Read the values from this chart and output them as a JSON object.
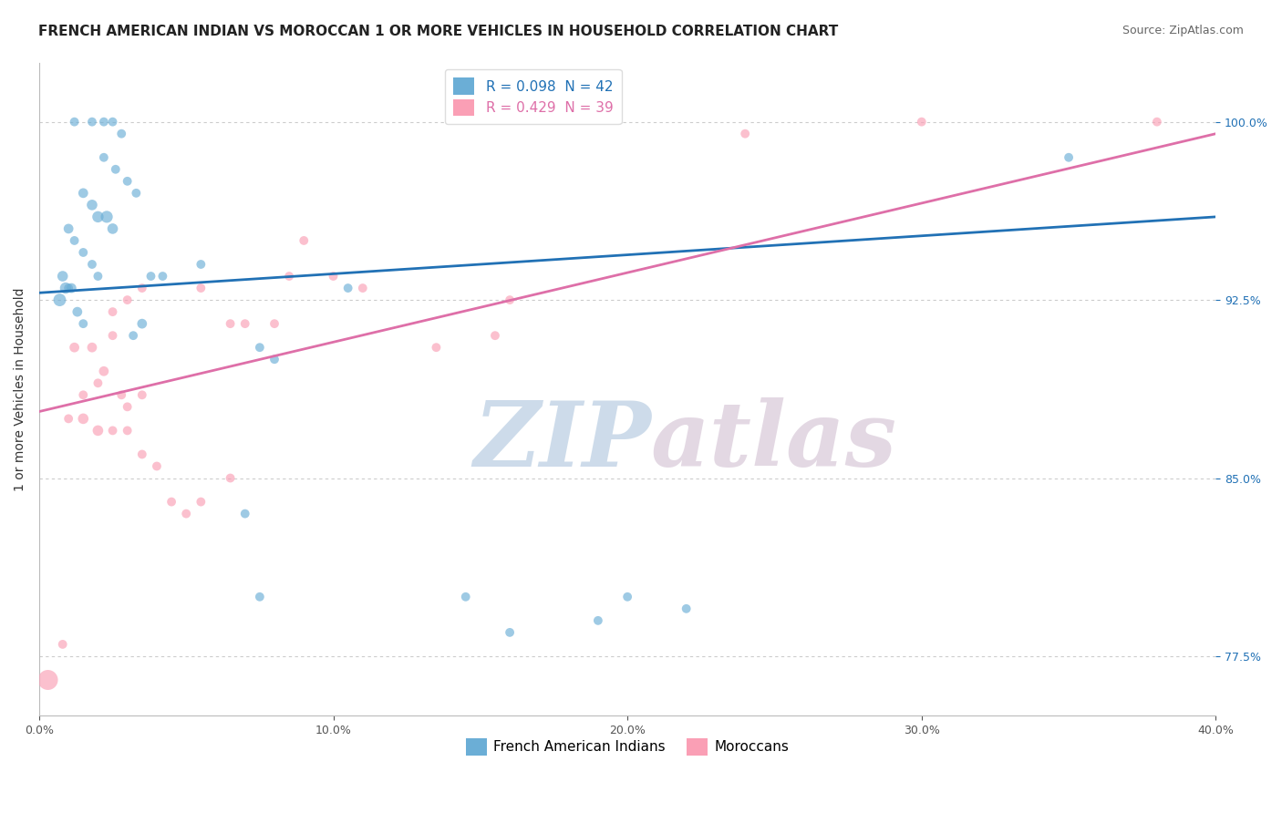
{
  "title": "FRENCH AMERICAN INDIAN VS MOROCCAN 1 OR MORE VEHICLES IN HOUSEHOLD CORRELATION CHART",
  "source": "Source: ZipAtlas.com",
  "xlabel": "",
  "ylabel": "1 or more Vehicles in Household",
  "xlim": [
    0.0,
    40.0
  ],
  "ylim": [
    75.0,
    102.5
  ],
  "yticks": [
    77.5,
    85.0,
    92.5,
    100.0
  ],
  "ytick_labels": [
    "77.5%",
    "85.0%",
    "92.5%",
    "100.0%"
  ],
  "xticks": [
    0.0,
    10.0,
    20.0,
    30.0,
    40.0
  ],
  "xtick_labels": [
    "0.0%",
    "10.0%",
    "20.0%",
    "30.0%",
    "40.0%"
  ],
  "blue_R": 0.098,
  "blue_N": 42,
  "pink_R": 0.429,
  "pink_N": 39,
  "blue_color": "#6baed6",
  "pink_color": "#fa9fb5",
  "blue_line_color": "#2171b5",
  "pink_line_color": "#de6fa8",
  "legend_label_blue": "French American Indians",
  "legend_label_pink": "Moroccans",
  "blue_line": [
    0.0,
    92.8,
    40.0,
    96.0
  ],
  "pink_line": [
    0.0,
    87.8,
    40.0,
    99.5
  ],
  "blue_x": [
    1.2,
    1.8,
    2.2,
    2.5,
    2.8,
    2.2,
    2.6,
    3.0,
    3.3,
    1.5,
    1.8,
    2.0,
    2.3,
    2.5,
    1.0,
    1.2,
    1.5,
    1.8,
    2.0,
    1.0,
    0.8,
    0.9,
    1.1,
    0.7,
    1.3,
    1.5,
    3.8,
    4.2,
    5.5,
    3.5,
    3.2,
    7.5,
    8.0,
    10.5,
    7.0,
    14.5,
    16.0,
    19.0,
    22.0,
    7.5,
    20.0,
    35.0
  ],
  "blue_y": [
    100.0,
    100.0,
    100.0,
    100.0,
    99.5,
    98.5,
    98.0,
    97.5,
    97.0,
    97.0,
    96.5,
    96.0,
    96.0,
    95.5,
    95.5,
    95.0,
    94.5,
    94.0,
    93.5,
    93.0,
    93.5,
    93.0,
    93.0,
    92.5,
    92.0,
    91.5,
    93.5,
    93.5,
    94.0,
    91.5,
    91.0,
    90.5,
    90.0,
    93.0,
    83.5,
    80.0,
    78.5,
    79.0,
    79.5,
    80.0,
    80.0,
    98.5
  ],
  "blue_sizes": [
    50,
    50,
    50,
    50,
    50,
    50,
    50,
    50,
    50,
    60,
    70,
    80,
    90,
    70,
    60,
    50,
    50,
    50,
    50,
    50,
    70,
    80,
    60,
    100,
    60,
    50,
    50,
    50,
    50,
    60,
    50,
    50,
    50,
    50,
    50,
    50,
    50,
    50,
    50,
    50,
    50,
    50
  ],
  "pink_x": [
    0.3,
    0.8,
    1.0,
    1.5,
    2.0,
    2.5,
    1.2,
    1.8,
    2.2,
    2.8,
    3.0,
    3.5,
    1.5,
    2.0,
    2.5,
    3.0,
    3.5,
    4.0,
    4.5,
    5.0,
    5.5,
    6.5,
    6.5,
    2.5,
    3.0,
    3.5,
    5.5,
    7.0,
    8.0,
    8.5,
    9.0,
    10.0,
    11.0,
    13.5,
    15.5,
    16.0,
    24.0,
    30.0,
    38.0
  ],
  "pink_y": [
    76.5,
    78.0,
    87.5,
    88.5,
    89.0,
    91.0,
    90.5,
    90.5,
    89.5,
    88.5,
    88.0,
    88.5,
    87.5,
    87.0,
    87.0,
    87.0,
    86.0,
    85.5,
    84.0,
    83.5,
    84.0,
    85.0,
    91.5,
    92.0,
    92.5,
    93.0,
    93.0,
    91.5,
    91.5,
    93.5,
    95.0,
    93.5,
    93.0,
    90.5,
    91.0,
    92.5,
    99.5,
    100.0,
    100.0
  ],
  "pink_sizes": [
    250,
    50,
    50,
    50,
    50,
    50,
    60,
    60,
    60,
    50,
    50,
    50,
    70,
    70,
    50,
    50,
    50,
    50,
    50,
    50,
    50,
    50,
    50,
    50,
    50,
    50,
    50,
    50,
    50,
    50,
    50,
    50,
    50,
    50,
    50,
    50,
    50,
    50,
    50
  ],
  "watermark_zip": "ZIP",
  "watermark_atlas": "atlas",
  "background_color": "#ffffff",
  "grid_color": "#cccccc",
  "title_fontsize": 11,
  "source_fontsize": 9,
  "axis_label_fontsize": 10,
  "tick_fontsize": 9,
  "legend_fontsize": 11
}
